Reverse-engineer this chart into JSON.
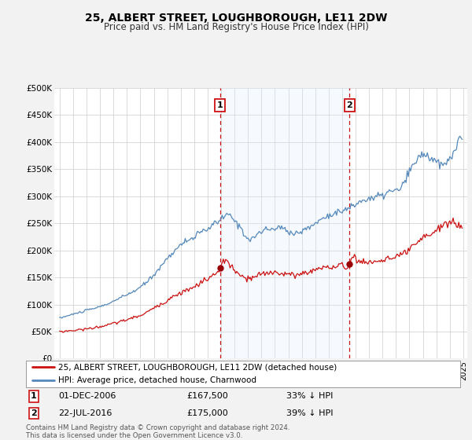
{
  "title": "25, ALBERT STREET, LOUGHBOROUGH, LE11 2DW",
  "subtitle": "Price paid vs. HM Land Registry's House Price Index (HPI)",
  "ylabel_ticks": [
    "£0",
    "£50K",
    "£100K",
    "£150K",
    "£200K",
    "£250K",
    "£300K",
    "£350K",
    "£400K",
    "£450K",
    "£500K"
  ],
  "ytick_values": [
    0,
    50000,
    100000,
    150000,
    200000,
    250000,
    300000,
    350000,
    400000,
    450000,
    500000
  ],
  "ylim": [
    0,
    500000
  ],
  "hpi_color": "#5588bb",
  "price_color": "#cc1111",
  "shade_color": "#ddeeff",
  "sale1_date": "01-DEC-2006",
  "sale1_price": 167500,
  "sale1_note": "33% ↓ HPI",
  "sale2_date": "22-JUL-2016",
  "sale2_price": 175000,
  "sale2_note": "39% ↓ HPI",
  "legend_line1": "25, ALBERT STREET, LOUGHBOROUGH, LE11 2DW (detached house)",
  "legend_line2": "HPI: Average price, detached house, Charnwood",
  "footer": "Contains HM Land Registry data © Crown copyright and database right 2024.\nThis data is licensed under the Open Government Licence v3.0.",
  "background_color": "#f2f2f2",
  "plot_bg_color": "#ffffff",
  "sale1_x": 2006.917,
  "sale2_x": 2016.542,
  "vline_color": "#cc1111",
  "marker_color": "#990000"
}
